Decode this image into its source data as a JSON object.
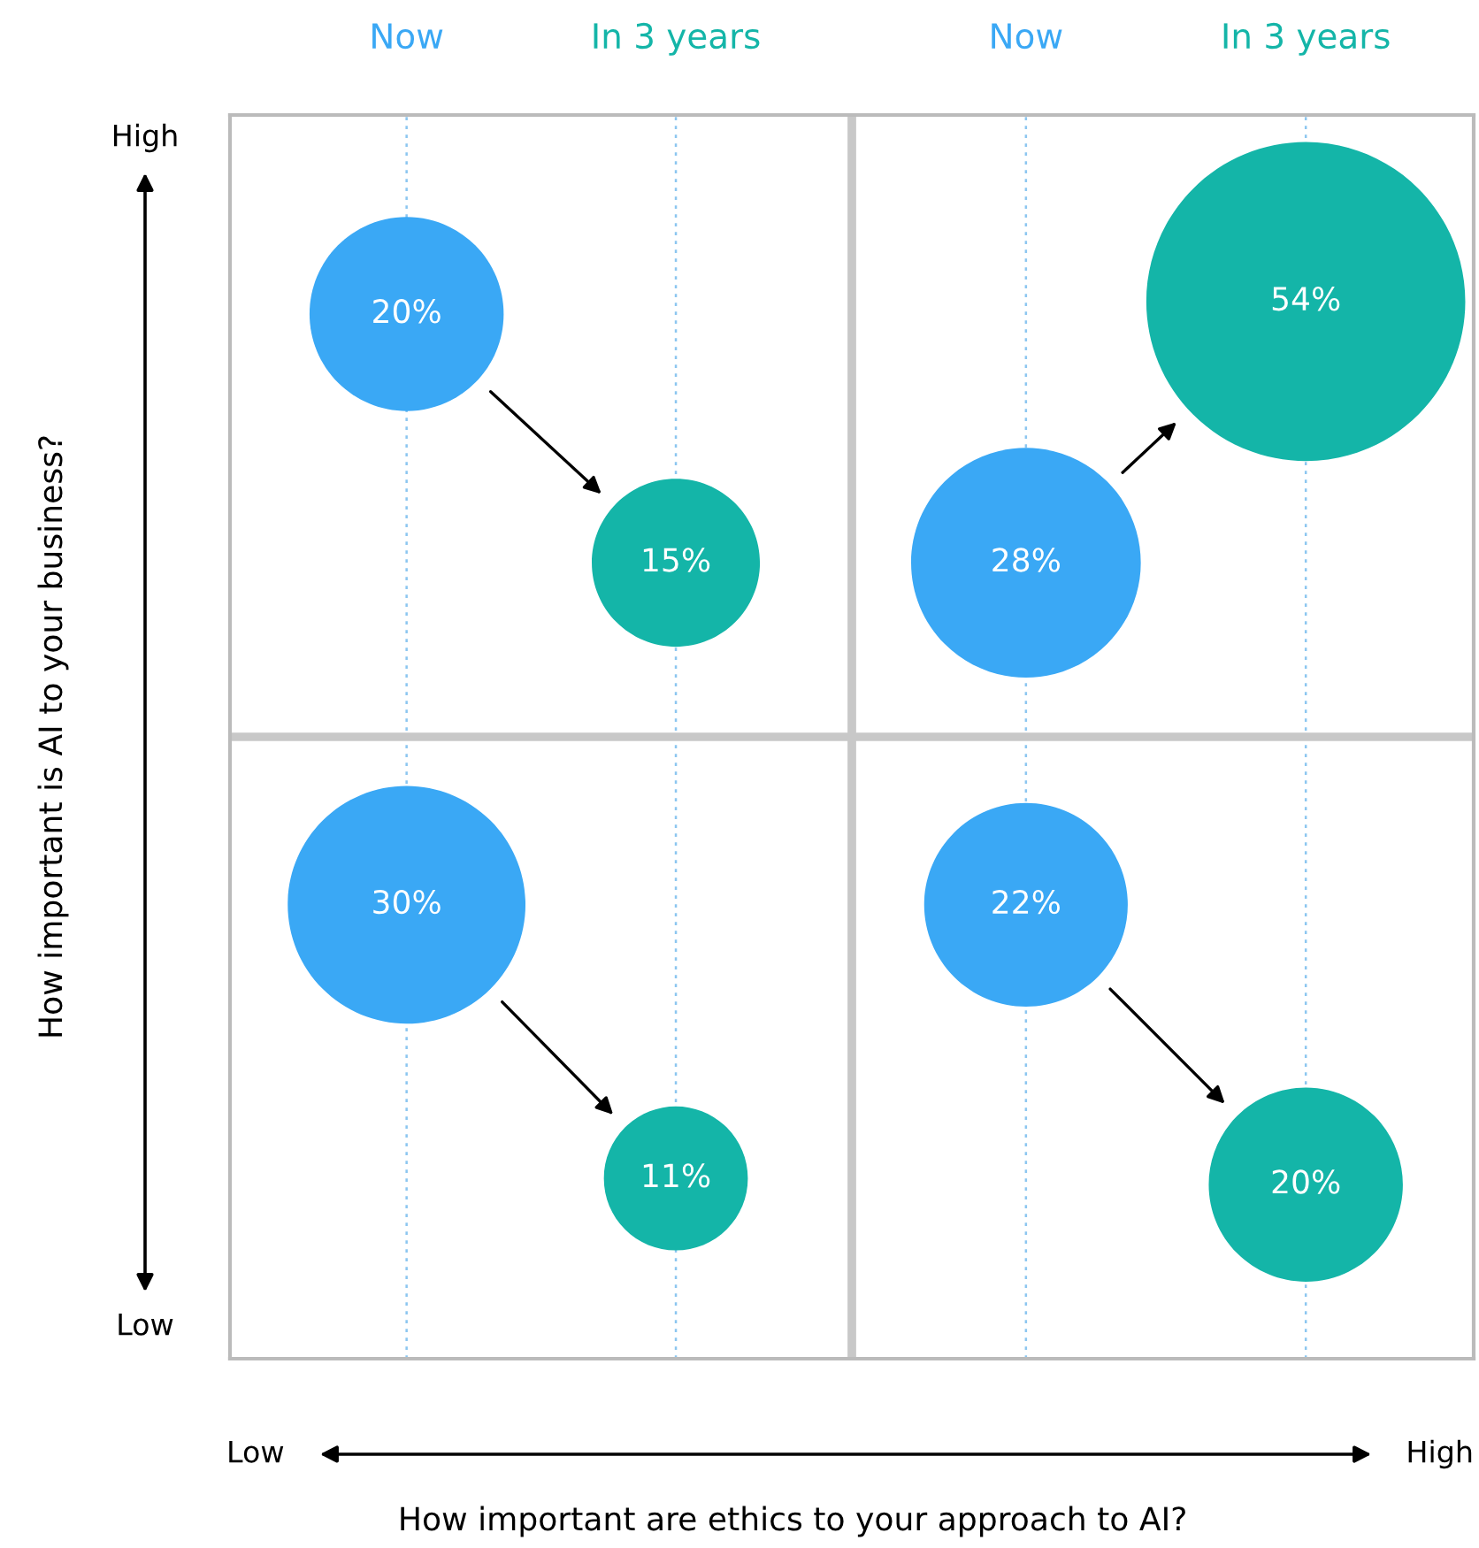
{
  "chart_data": {
    "type": "other",
    "xlabel": "How important are ethics to your approach to AI?",
    "ylabel": "How important is AI to your business?",
    "categories": [
      "Now",
      "In 3 years",
      "Now",
      "In 3 years"
    ],
    "series": [
      {
        "values": [
          20,
          15,
          28,
          54
        ],
        "value_labels": [
          "20%",
          "15%",
          "28%",
          "54%"
        ],
        "colors": [
          "#3aa8f5",
          "#14b5a8",
          "#3aa8f5",
          "#14b5a8"
        ]
      },
      {
        "values": [
          30,
          11,
          22,
          20
        ],
        "value_labels": [
          "30%",
          "11%",
          "22%",
          "20%"
        ],
        "colors": [
          "#3aa8f5",
          "#14b5a8",
          "#3aa8f5",
          "#14b5a8"
        ]
      }
    ],
    "annotations": [
      "High",
      "Low",
      "Low",
      "High"
    ]
  }
}
